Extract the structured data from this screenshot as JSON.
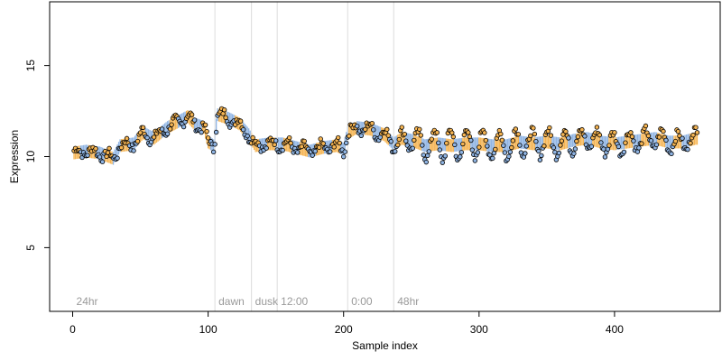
{
  "chart_data": {
    "type": "scatter",
    "xlabel": "Sample index",
    "ylabel": "Expression",
    "xlim": [
      -17,
      478
    ],
    "ylim": [
      1.5,
      18.5
    ],
    "x_ticks": [
      0,
      100,
      200,
      300,
      400
    ],
    "y_ticks": [
      5,
      10,
      15
    ],
    "grid": false,
    "colors": {
      "orange": "#f5b452",
      "blue": "#8fb4e3",
      "divider": "#dcdcdc",
      "region_label": "#9a9a9a"
    },
    "regions": [
      {
        "label": "24hr",
        "start": 0
      },
      {
        "label": "dawn",
        "start": 105
      },
      {
        "label": "dusk",
        "start": 132
      },
      {
        "label": "12:00",
        "start": 151
      },
      {
        "label": "0:00",
        "start": 203
      },
      {
        "label": "48hr",
        "start": 237
      }
    ],
    "anchors": [
      [
        1,
        10.2
      ],
      [
        10,
        10.3
      ],
      [
        20,
        10.2
      ],
      [
        30,
        9.9
      ],
      [
        35,
        10.6
      ],
      [
        45,
        10.7
      ],
      [
        52,
        11.3
      ],
      [
        60,
        11.0
      ],
      [
        70,
        11.6
      ],
      [
        80,
        12.0
      ],
      [
        85,
        12.2
      ],
      [
        90,
        11.8
      ],
      [
        97,
        11.6
      ],
      [
        100,
        10.8
      ],
      [
        104,
        10.6
      ],
      [
        107,
        12.3
      ],
      [
        115,
        12.1
      ],
      [
        123,
        11.8
      ],
      [
        130,
        11.2
      ],
      [
        135,
        10.6
      ],
      [
        145,
        10.7
      ],
      [
        155,
        10.7
      ],
      [
        165,
        10.5
      ],
      [
        175,
        10.3
      ],
      [
        185,
        10.5
      ],
      [
        195,
        10.6
      ],
      [
        200,
        10.4
      ],
      [
        203,
        11.3
      ],
      [
        210,
        11.6
      ],
      [
        220,
        11.5
      ],
      [
        230,
        11.2
      ],
      [
        237,
        10.7
      ],
      [
        243,
        11.0
      ],
      [
        250,
        10.9
      ],
      [
        260,
        10.6
      ],
      [
        270,
        10.7
      ],
      [
        280,
        10.6
      ],
      [
        290,
        10.7
      ],
      [
        300,
        10.7
      ],
      [
        310,
        10.6
      ],
      [
        320,
        10.6
      ],
      [
        330,
        10.8
      ],
      [
        340,
        10.7
      ],
      [
        350,
        10.8
      ],
      [
        360,
        10.7
      ],
      [
        370,
        10.9
      ],
      [
        380,
        11.0
      ],
      [
        390,
        10.8
      ],
      [
        400,
        10.7
      ],
      [
        410,
        10.8
      ],
      [
        420,
        10.9
      ],
      [
        430,
        11.0
      ],
      [
        440,
        10.8
      ],
      [
        450,
        10.8
      ],
      [
        460,
        11.0
      ]
    ],
    "amplitude_profile": [
      [
        0,
        0.25
      ],
      [
        200,
        0.3
      ],
      [
        240,
        0.4
      ],
      [
        270,
        0.9
      ],
      [
        300,
        0.9
      ],
      [
        350,
        0.7
      ],
      [
        400,
        0.6
      ],
      [
        461,
        0.5
      ]
    ],
    "oscillation_period": 12,
    "point_count": 461
  }
}
